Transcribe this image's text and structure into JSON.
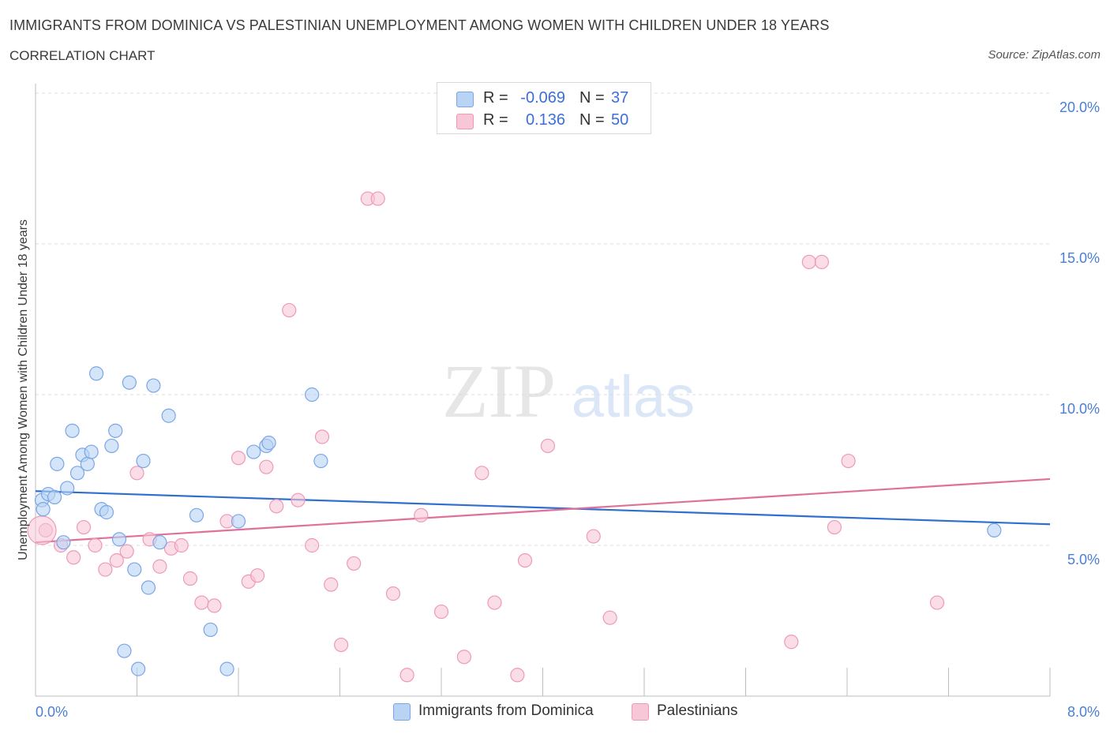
{
  "title": "IMMIGRANTS FROM DOMINICA VS PALESTINIAN UNEMPLOYMENT AMONG WOMEN WITH CHILDREN UNDER 18 YEARS",
  "subtitle": "CORRELATION CHART",
  "source": "Source: ZipAtlas.com",
  "watermark": {
    "zip": "ZIP",
    "atlas": "atlas"
  },
  "legend_top": {
    "rows": [
      {
        "r_label": "R =",
        "r_value": "-0.069",
        "n_label": "N =",
        "n_value": "37",
        "color": "#b9d3f5",
        "border": "#7aa6e6"
      },
      {
        "r_label": "R =",
        "r_value": "0.136",
        "n_label": "N =",
        "n_value": "50",
        "color": "#f8c7d7",
        "border": "#ee9ab6"
      }
    ]
  },
  "legend_bottom": {
    "items": [
      {
        "label": "Immigrants from Dominica",
        "color": "#b9d3f5",
        "border": "#7aa6e6"
      },
      {
        "label": "Palestinians",
        "color": "#f8c7d7",
        "border": "#ee9ab6"
      }
    ]
  },
  "chart_data": {
    "type": "scatter",
    "title": "IMMIGRANTS FROM DOMINICA VS PALESTINIAN UNEMPLOYMENT AMONG WOMEN WITH CHILDREN UNDER 18 YEARS",
    "xlabel": "",
    "ylabel": "Unemployment Among Women with Children Under 18 years",
    "xlim": [
      0,
      8
    ],
    "ylim": [
      0,
      20
    ],
    "x_tick_labels": [
      "0.0%",
      "8.0%"
    ],
    "y_ticks": [
      5,
      10,
      15,
      20
    ],
    "y_tick_labels": [
      "5.0%",
      "10.0%",
      "15.0%",
      "20.0%"
    ],
    "grid": true,
    "legend_position": "top-center",
    "series": [
      {
        "name": "Immigrants from Dominica",
        "color": "#7aa6e6",
        "fill": "#b9d3f5",
        "trend": {
          "x": [
            0,
            8
          ],
          "y": [
            6.8,
            5.7
          ],
          "color": "#2f6fd0"
        },
        "points": [
          [
            0.05,
            6.5
          ],
          [
            0.06,
            6.2
          ],
          [
            0.1,
            6.7
          ],
          [
            0.15,
            6.6
          ],
          [
            0.17,
            7.7
          ],
          [
            0.22,
            5.1
          ],
          [
            0.25,
            6.9
          ],
          [
            0.29,
            8.8
          ],
          [
            0.33,
            7.4
          ],
          [
            0.37,
            8.0
          ],
          [
            0.41,
            7.7
          ],
          [
            0.44,
            8.1
          ],
          [
            0.48,
            10.7
          ],
          [
            0.52,
            6.2
          ],
          [
            0.56,
            6.1
          ],
          [
            0.6,
            8.3
          ],
          [
            0.63,
            8.8
          ],
          [
            0.66,
            5.2
          ],
          [
            0.7,
            1.5
          ],
          [
            0.74,
            10.4
          ],
          [
            0.78,
            4.2
          ],
          [
            0.81,
            0.9
          ],
          [
            0.85,
            7.8
          ],
          [
            0.89,
            3.6
          ],
          [
            0.93,
            10.3
          ],
          [
            0.98,
            5.1
          ],
          [
            1.05,
            9.3
          ],
          [
            1.27,
            6.0
          ],
          [
            1.38,
            2.2
          ],
          [
            1.51,
            0.9
          ],
          [
            1.6,
            5.8
          ],
          [
            1.72,
            8.1
          ],
          [
            1.82,
            8.3
          ],
          [
            1.84,
            8.4
          ],
          [
            2.18,
            10.0
          ],
          [
            2.25,
            7.8
          ],
          [
            7.56,
            5.5
          ]
        ]
      },
      {
        "name": "Palestinians",
        "color": "#ee9ab6",
        "fill": "#f8c7d7",
        "trend": {
          "x": [
            0,
            8
          ],
          "y": [
            5.1,
            7.2
          ],
          "color": "#e0709a"
        },
        "points": [
          [
            0.08,
            5.5
          ],
          [
            0.2,
            5.0
          ],
          [
            0.3,
            4.6
          ],
          [
            0.38,
            5.6
          ],
          [
            0.47,
            5.0
          ],
          [
            0.55,
            4.2
          ],
          [
            0.64,
            4.5
          ],
          [
            0.72,
            4.8
          ],
          [
            0.8,
            7.4
          ],
          [
            0.9,
            5.2
          ],
          [
            0.98,
            4.3
          ],
          [
            1.07,
            4.9
          ],
          [
            1.15,
            5.0
          ],
          [
            1.22,
            3.9
          ],
          [
            1.31,
            3.1
          ],
          [
            1.41,
            3.0
          ],
          [
            1.51,
            5.8
          ],
          [
            1.6,
            7.9
          ],
          [
            1.68,
            3.8
          ],
          [
            1.75,
            4.0
          ],
          [
            1.82,
            7.6
          ],
          [
            1.9,
            6.3
          ],
          [
            2.0,
            12.8
          ],
          [
            2.07,
            6.5
          ],
          [
            2.18,
            5.0
          ],
          [
            2.26,
            8.6
          ],
          [
            2.33,
            3.7
          ],
          [
            2.41,
            1.7
          ],
          [
            2.51,
            4.4
          ],
          [
            2.62,
            16.5
          ],
          [
            2.7,
            16.5
          ],
          [
            2.82,
            3.4
          ],
          [
            2.93,
            0.7
          ],
          [
            3.04,
            6.0
          ],
          [
            3.2,
            2.8
          ],
          [
            3.38,
            1.3
          ],
          [
            3.52,
            7.4
          ],
          [
            3.62,
            3.1
          ],
          [
            3.8,
            0.7
          ],
          [
            3.86,
            4.5
          ],
          [
            4.04,
            8.3
          ],
          [
            4.4,
            5.3
          ],
          [
            4.53,
            2.6
          ],
          [
            5.96,
            1.8
          ],
          [
            6.1,
            14.4
          ],
          [
            6.2,
            14.4
          ],
          [
            6.3,
            5.6
          ],
          [
            6.41,
            7.8
          ],
          [
            7.11,
            3.1
          ],
          [
            0.05,
            5.5
          ]
        ]
      }
    ]
  }
}
